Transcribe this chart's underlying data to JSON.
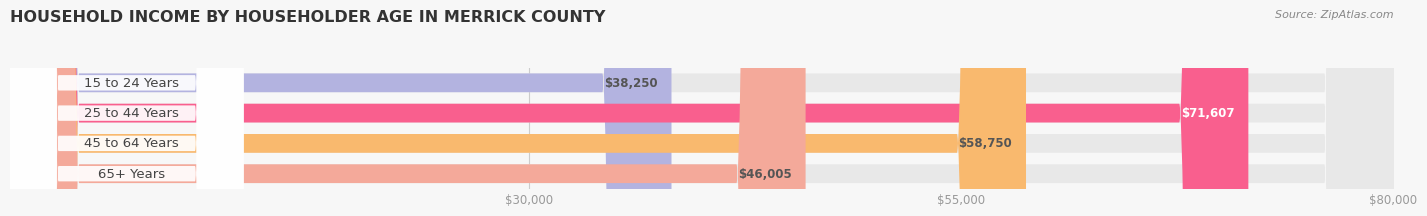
{
  "title": "HOUSEHOLD INCOME BY HOUSEHOLDER AGE IN MERRICK COUNTY",
  "source": "Source: ZipAtlas.com",
  "categories": [
    "15 to 24 Years",
    "25 to 44 Years",
    "45 to 64 Years",
    "65+ Years"
  ],
  "values": [
    38250,
    71607,
    58750,
    46005
  ],
  "bar_colors": [
    "#b3b3e0",
    "#f95f8e",
    "#f9b96e",
    "#f4a99a"
  ],
  "bar_bg_color": "#e8e8e8",
  "value_label_colors": [
    "#555555",
    "#ffffff",
    "#555555",
    "#555555"
  ],
  "xlim": [
    0,
    80000
  ],
  "xmin": 0,
  "xmax": 80000,
  "xticks": [
    30000,
    55000,
    80000
  ],
  "xtick_labels": [
    "$30,000",
    "$55,000",
    "$80,000"
  ],
  "bar_height": 0.62,
  "background_color": "#f7f7f7",
  "title_fontsize": 11.5,
  "cat_fontsize": 9.5,
  "tick_fontsize": 8.5,
  "value_fontsize": 8.5,
  "source_fontsize": 8
}
